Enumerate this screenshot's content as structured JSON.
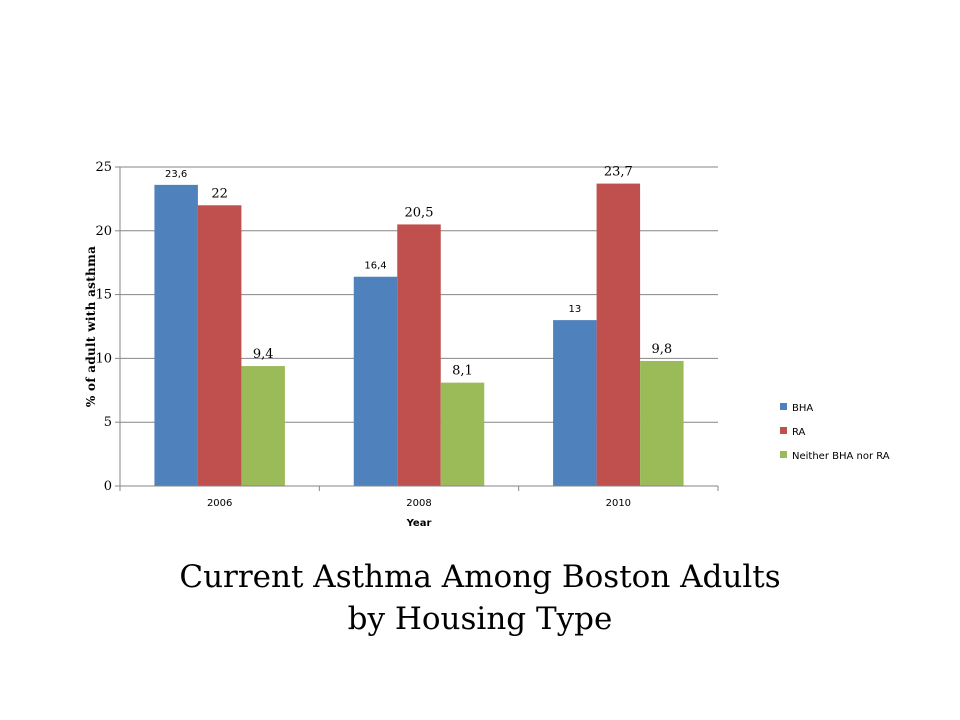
{
  "chart_data": {
    "type": "bar",
    "categories": [
      "2006",
      "2008",
      "2010"
    ],
    "series": [
      {
        "name": "BHA",
        "color": "#4f81bd",
        "values": [
          23.6,
          16.4,
          13
        ],
        "labels": [
          "23,6",
          "16,4",
          "13"
        ]
      },
      {
        "name": "RA",
        "color": "#c0504d",
        "values": [
          22,
          20.5,
          23.7
        ],
        "labels": [
          "22",
          "20,5",
          "23,7"
        ]
      },
      {
        "name": "Neither BHA nor RA",
        "color": "#9bbb59",
        "values": [
          9.4,
          8.1,
          9.8
        ],
        "labels": [
          "9,4",
          "8,1",
          "9,8"
        ]
      }
    ],
    "xlabel": "Year",
    "ylabel": "% of adult with asthma",
    "ylim": [
      0,
      25
    ],
    "yticks": [
      0,
      5,
      10,
      15,
      20,
      25
    ],
    "grid": true,
    "legend": "right"
  },
  "caption": {
    "line1": "Current Asthma Among Boston Adults",
    "line2": "by Housing Type"
  }
}
